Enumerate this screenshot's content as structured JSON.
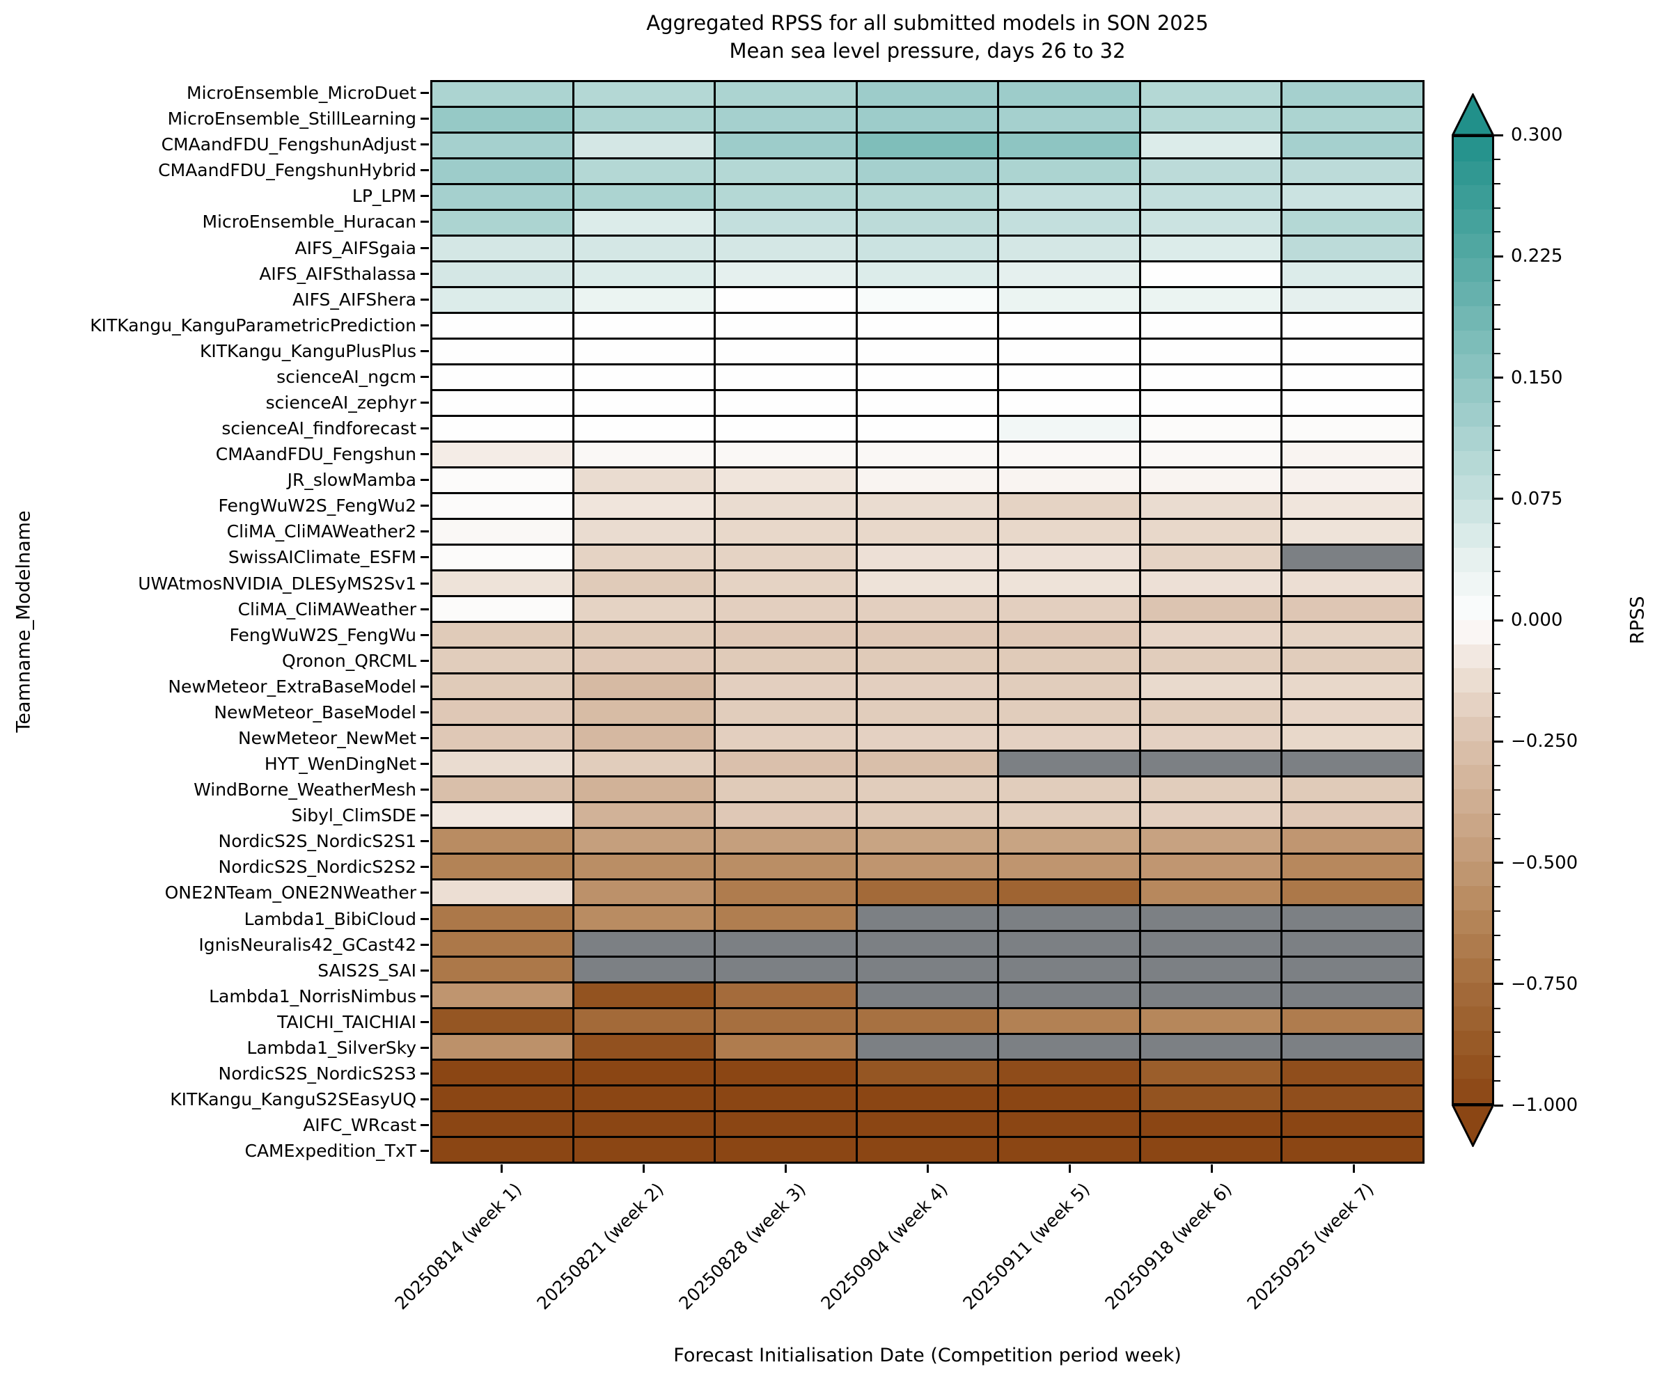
{
  "title": "Aggregated RPSS for all submitted models in SON 2025",
  "subtitle": "Mean sea level pressure, days 26 to 32",
  "axes": {
    "x_label": "Forecast Initialisation Date (Competition period week)",
    "y_label": "Teamname_Modelname"
  },
  "colorbar": {
    "label": "RPSS",
    "major_ticks": [
      "0.300",
      "0.225",
      "0.150",
      "0.075",
      "0.000",
      "−0.250",
      "−0.500",
      "−0.750",
      "−1.000"
    ],
    "major_values": [
      0.3,
      0.225,
      0.15,
      0.075,
      0.0,
      -0.25,
      -0.5,
      -0.75,
      -1.0
    ],
    "minor_subdivisions": 5,
    "bands": 40,
    "vmin": -1.0,
    "vcenter": 0.0,
    "vmax": 0.3,
    "missing_color": "#7c8084",
    "scale_stops": [
      [
        -1.0,
        "#8b4614"
      ],
      [
        -0.875,
        "#985a27"
      ],
      [
        -0.75,
        "#a56d3d"
      ],
      [
        -0.625,
        "#b48457"
      ],
      [
        -0.5,
        "#c29a76"
      ],
      [
        -0.375,
        "#cfae92"
      ],
      [
        -0.25,
        "#dbc2ae"
      ],
      [
        -0.125,
        "#ebddd1"
      ],
      [
        -0.05,
        "#f5eee9"
      ],
      [
        0.0,
        "#fefefe"
      ],
      [
        0.04,
        "#e5f0ee"
      ],
      [
        0.075,
        "#c7e1df"
      ],
      [
        0.15,
        "#8ec5c2"
      ],
      [
        0.225,
        "#55a9a4"
      ],
      [
        0.3,
        "#21908a"
      ]
    ]
  },
  "chart_data": {
    "type": "heatmap",
    "title": "Aggregated RPSS for all submitted models in SON 2025",
    "subtitle": "Mean sea level pressure, days 26 to 32",
    "xlabel": "Forecast Initialisation Date (Competition period week)",
    "ylabel": "Teamname_Modelname",
    "value_label": "RPSS",
    "value_range": [
      -1.0,
      0.3
    ],
    "missing_cells_shown_as": "gray",
    "x": [
      "20250814 (week 1)",
      "20250821 (week 2)",
      "20250828 (week 3)",
      "20250904 (week 4)",
      "20250911 (week 5)",
      "20250918 (week 6)",
      "20250925 (week 7)"
    ],
    "rows": [
      {
        "model": "MicroEnsemble_MicroDuet",
        "values": [
          0.11,
          0.1,
          0.11,
          0.13,
          0.13,
          0.1,
          0.12
        ]
      },
      {
        "model": "MicroEnsemble_StillLearning",
        "values": [
          0.14,
          0.11,
          0.12,
          0.13,
          0.12,
          0.1,
          0.11
        ]
      },
      {
        "model": "CMAandFDU_FengshunAdjust",
        "values": [
          0.12,
          0.06,
          0.13,
          0.17,
          0.15,
          0.05,
          0.12
        ]
      },
      {
        "model": "CMAandFDU_FengshunHybrid",
        "values": [
          0.13,
          0.1,
          0.1,
          0.12,
          0.11,
          0.09,
          0.09
        ]
      },
      {
        "model": "LP_LPM",
        "values": [
          0.12,
          0.11,
          0.1,
          0.1,
          0.08,
          0.08,
          0.07
        ]
      },
      {
        "model": "MicroEnsemble_Huracan",
        "values": [
          0.11,
          0.05,
          0.08,
          0.09,
          0.08,
          0.07,
          0.1
        ]
      },
      {
        "model": "AIFS_AIFSgaia",
        "values": [
          0.06,
          0.06,
          0.06,
          0.07,
          0.06,
          0.05,
          0.09
        ]
      },
      {
        "model": "AIFS_AIFSthalassa",
        "values": [
          0.06,
          0.05,
          0.04,
          0.05,
          0.04,
          0.0,
          0.05
        ]
      },
      {
        "model": "AIFS_AIFShera",
        "values": [
          0.05,
          0.03,
          0.0,
          0.01,
          0.03,
          0.03,
          0.04
        ]
      },
      {
        "model": "KITKangu_KanguParametricPrediction",
        "values": [
          0.0,
          0.0,
          0.0,
          0.0,
          0.0,
          0.0,
          0.0
        ]
      },
      {
        "model": "KITKangu_KanguPlusPlus",
        "values": [
          0.0,
          0.0,
          0.0,
          0.0,
          0.0,
          0.0,
          0.0
        ]
      },
      {
        "model": "scienceAI_ngcm",
        "values": [
          0.0,
          0.0,
          0.0,
          0.0,
          0.0,
          0.0,
          0.0
        ]
      },
      {
        "model": "scienceAI_zephyr",
        "values": [
          0.0,
          0.0,
          0.0,
          0.0,
          0.0,
          0.0,
          0.0
        ]
      },
      {
        "model": "scienceAI_findforecast",
        "values": [
          0.0,
          0.0,
          0.0,
          0.0,
          0.02,
          -0.01,
          -0.01
        ]
      },
      {
        "model": "CMAandFDU_Fengshun",
        "values": [
          -0.06,
          -0.02,
          -0.02,
          -0.02,
          -0.02,
          -0.02,
          -0.03
        ]
      },
      {
        "model": "JR_slowMamba",
        "values": [
          -0.01,
          -0.13,
          -0.09,
          -0.03,
          -0.03,
          -0.03,
          -0.04
        ]
      },
      {
        "model": "FengWuW2S_FengWu2",
        "values": [
          -0.01,
          -0.09,
          -0.13,
          -0.13,
          -0.17,
          -0.13,
          -0.09
        ]
      },
      {
        "model": "CliMA_CliMAWeather2",
        "values": [
          -0.02,
          -0.13,
          -0.15,
          -0.15,
          -0.15,
          -0.15,
          -0.1
        ]
      },
      {
        "model": "SwissAIClimate_ESFM",
        "values": [
          -0.01,
          -0.17,
          -0.17,
          -0.11,
          -0.11,
          -0.17,
          null
        ]
      },
      {
        "model": "UWAtmosNVIDIA_DLESyMS2Sv1",
        "values": [
          -0.1,
          -0.21,
          -0.17,
          -0.1,
          -0.1,
          -0.11,
          -0.12
        ]
      },
      {
        "model": "CliMA_CliMAWeather",
        "values": [
          -0.01,
          -0.17,
          -0.19,
          -0.19,
          -0.19,
          -0.24,
          -0.23
        ]
      },
      {
        "model": "FengWuW2S_FengWu",
        "values": [
          -0.21,
          -0.21,
          -0.22,
          -0.22,
          -0.22,
          -0.16,
          -0.17
        ]
      },
      {
        "model": "Qronon_QRCML",
        "values": [
          -0.2,
          -0.22,
          -0.21,
          -0.21,
          -0.21,
          -0.2,
          -0.2
        ]
      },
      {
        "model": "NewMeteor_ExtraBaseModel",
        "values": [
          -0.21,
          -0.3,
          -0.19,
          -0.19,
          -0.2,
          -0.14,
          -0.15
        ]
      },
      {
        "model": "NewMeteor_BaseModel",
        "values": [
          -0.22,
          -0.29,
          -0.2,
          -0.2,
          -0.2,
          -0.2,
          -0.16
        ]
      },
      {
        "model": "NewMeteor_NewMet",
        "values": [
          -0.22,
          -0.31,
          -0.19,
          -0.18,
          -0.18,
          -0.18,
          -0.15
        ]
      },
      {
        "model": "HYT_WenDingNet",
        "values": [
          -0.13,
          -0.2,
          -0.26,
          -0.27,
          null,
          null,
          null
        ]
      },
      {
        "model": "WindBorne_WeatherMesh",
        "values": [
          -0.27,
          -0.35,
          -0.21,
          -0.2,
          -0.2,
          -0.2,
          -0.21
        ]
      },
      {
        "model": "Sibyl_ClimSDE",
        "values": [
          -0.08,
          -0.35,
          -0.22,
          -0.21,
          -0.2,
          -0.19,
          -0.22
        ]
      },
      {
        "model": "NordicS2S_NordicS2S1",
        "values": [
          -0.58,
          -0.47,
          -0.47,
          -0.44,
          -0.44,
          -0.45,
          -0.52
        ]
      },
      {
        "model": "NordicS2S_NordicS2S2",
        "values": [
          -0.63,
          -0.57,
          -0.57,
          -0.53,
          -0.53,
          -0.52,
          -0.6
        ]
      },
      {
        "model": "ONE2NTeam_ONE2NWeather",
        "values": [
          -0.12,
          -0.55,
          -0.67,
          -0.77,
          -0.81,
          -0.6,
          -0.69
        ]
      },
      {
        "model": "Lambda1_BibiCloud",
        "values": [
          -0.69,
          -0.58,
          -0.66,
          null,
          null,
          null,
          null
        ]
      },
      {
        "model": "IgnisNeuralis42_GCast42",
        "values": [
          -0.69,
          null,
          null,
          null,
          null,
          null,
          null
        ]
      },
      {
        "model": "SAIS2S_SAI",
        "values": [
          -0.69,
          null,
          null,
          null,
          null,
          null,
          null
        ]
      },
      {
        "model": "Lambda1_NorrisNimbus",
        "values": [
          -0.53,
          -0.92,
          -0.76,
          null,
          null,
          null,
          null
        ]
      },
      {
        "model": "TAICHI_TAICHIAI",
        "values": [
          -0.9,
          -0.77,
          -0.74,
          -0.73,
          -0.64,
          -0.61,
          -0.67
        ]
      },
      {
        "model": "Lambda1_SilverSky",
        "values": [
          -0.55,
          -0.93,
          -0.67,
          null,
          null,
          null,
          null
        ]
      },
      {
        "model": "NordicS2S_NordicS2S3",
        "values": [
          -1.0,
          -1.0,
          -1.0,
          -0.9,
          -0.96,
          -0.85,
          -0.95
        ]
      },
      {
        "model": "KITKangu_KanguS2SEasyUQ",
        "values": [
          -1.0,
          -1.0,
          -1.0,
          -1.0,
          -1.0,
          -0.92,
          -0.95
        ]
      },
      {
        "model": "AIFC_WRcast",
        "values": [
          -1.0,
          -1.0,
          -1.0,
          -1.0,
          -1.0,
          -1.0,
          -1.0
        ]
      },
      {
        "model": "CAMExpedition_TxT",
        "values": [
          -1.0,
          -1.0,
          -1.0,
          -1.0,
          -1.0,
          -1.0,
          -1.0
        ]
      }
    ]
  }
}
